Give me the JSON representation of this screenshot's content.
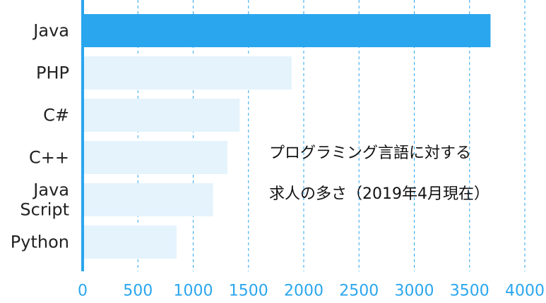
{
  "chart_data": {
    "type": "bar",
    "orientation": "horizontal",
    "categories": [
      [
        "Java"
      ],
      [
        "PHP"
      ],
      [
        "C#"
      ],
      [
        "C++"
      ],
      [
        "Java",
        "Script"
      ],
      [
        "Python"
      ]
    ],
    "values": [
      3690,
      1890,
      1420,
      1310,
      1180,
      850
    ],
    "highlight_index": 0,
    "xlim": [
      0,
      4000
    ],
    "xticks": [
      0,
      500,
      1000,
      1500,
      2000,
      2500,
      3000,
      3500,
      4000
    ],
    "grid": true,
    "annotation": [
      "プログラミング言語に対する",
      "求人の多さ（2019年4月現在）"
    ],
    "colors": {
      "highlight": "#2aa6ee",
      "bar": "#e4f3fc",
      "axis": "#2aa6ee",
      "grid": "#2aa6ee",
      "tick_text": "#2aa6ee",
      "label_text": "#222222"
    }
  }
}
